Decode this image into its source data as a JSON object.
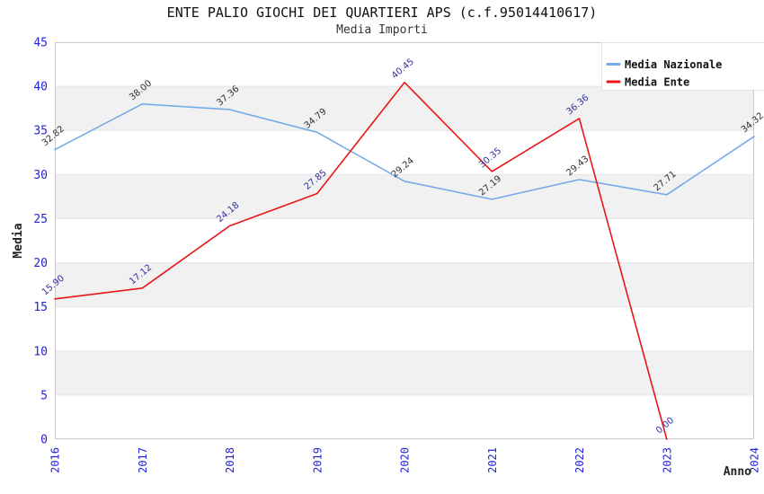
{
  "title": "ENTE PALIO GIOCHI DEI QUARTIERI APS (c.f.95014410617)",
  "subtitle": "Media Importi",
  "colors": {
    "background": "#ffffff",
    "band_white": "#ffffff",
    "band_gray": "#f1f1f1",
    "band_edge": "#e7e7e7",
    "plot_border": "#c9c9c9",
    "axis_tick_text": "#2222d6",
    "axis_title_text": "#222222",
    "title_text": "#111111",
    "legend_text": "#111111",
    "legend_border": "#e0e0e0",
    "legend_background": "#ffffff"
  },
  "chart_data": {
    "type": "line",
    "title": "ENTE PALIO GIOCHI DEI QUARTIERI APS (c.f.95014410617)",
    "subtitle": "Media Importi",
    "xlabel": "Anno",
    "ylabel": "Media",
    "x_categories": [
      "2016",
      "2017",
      "2018",
      "2019",
      "2020",
      "2021",
      "2022",
      "2023",
      "2024"
    ],
    "series": [
      {
        "name": "Media Nazionale",
        "color": "#74abe8",
        "label_color": "#2f2f2f",
        "values": [
          32.82,
          38.0,
          37.36,
          34.79,
          29.24,
          27.19,
          29.43,
          27.71,
          34.32
        ],
        "labels": [
          "32.82",
          "38.00",
          "37.36",
          "34.79",
          "29.24",
          "27.19",
          "29.43",
          "27.71",
          "34.32"
        ]
      },
      {
        "name": "Media Ente",
        "color": "#ec1515",
        "label_color": "#30309c",
        "values": [
          15.9,
          17.12,
          24.18,
          27.85,
          40.45,
          30.35,
          36.36,
          0.0,
          null
        ],
        "labels": [
          "15.90",
          "17.12",
          "24.18",
          "27.85",
          "40.45",
          "30.35",
          "36.36",
          "0.00",
          null
        ]
      }
    ],
    "ylim": [
      0,
      45
    ],
    "ytick_step": 5,
    "ytick_labels": [
      "0",
      "5",
      "10",
      "15",
      "20",
      "25",
      "30",
      "35",
      "40",
      "45"
    ],
    "grid": "alternating horizontal bands every 5 units, gray on odd bands",
    "legend_position": "top-right",
    "data_label_rotation_deg": -40
  }
}
